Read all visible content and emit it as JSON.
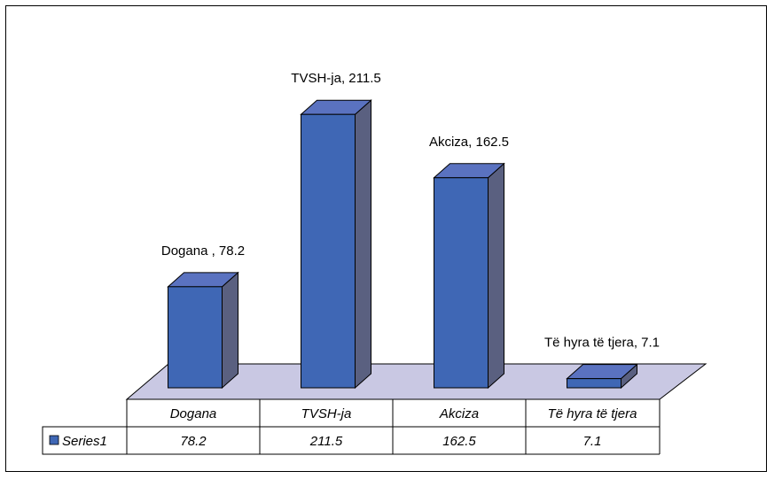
{
  "chart_data": {
    "type": "bar",
    "three_d": true,
    "categories": [
      "Dogana",
      "TVSH-ja",
      "Akciza",
      "Të hyra të tjera"
    ],
    "series": [
      {
        "name": "Series1",
        "values": [
          78.2,
          211.5,
          162.5,
          7.1
        ]
      }
    ],
    "data_labels": [
      "Dogana , 78.2",
      "TVSH-ja, 211.5",
      "Akciza, 162.5",
      "Të hyra të tjera, 7.1"
    ],
    "table_values": [
      "78.2",
      "211.5",
      "162.5",
      "7.1"
    ],
    "title": "",
    "xlabel": "",
    "ylabel": "",
    "ylim": [
      0,
      230
    ],
    "grid": false,
    "legend": "data-table",
    "colors": {
      "bar_front": "#3f67b5",
      "bar_side": "#5a6080",
      "bar_top": "#5a72c0",
      "floor": "#c9c8e3",
      "border": "#000000"
    }
  }
}
